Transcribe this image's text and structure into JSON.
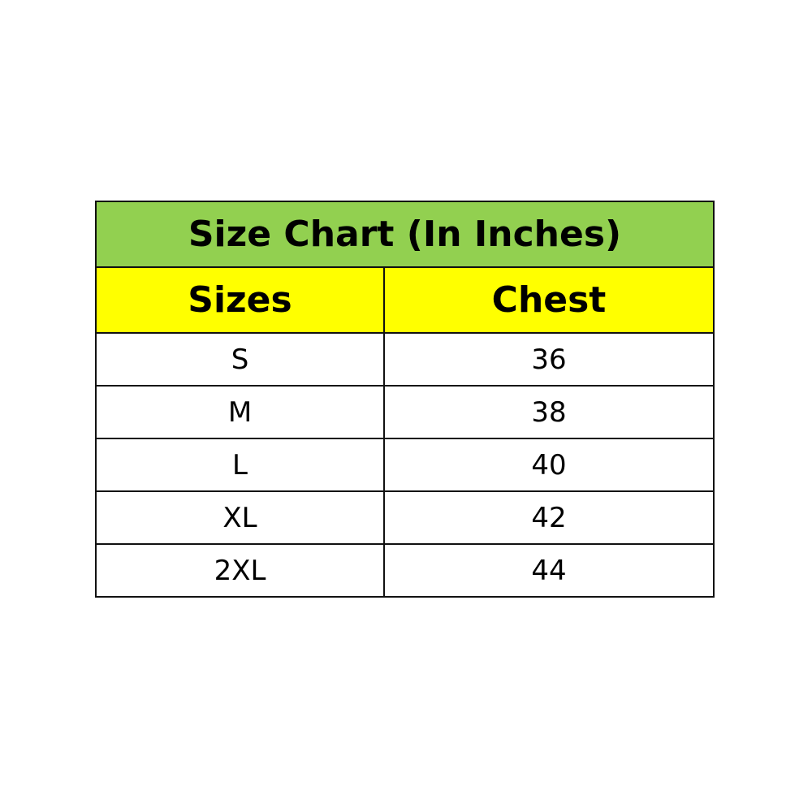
{
  "title": "Size Chart (In Inches)",
  "headers": [
    "Sizes",
    "Chest"
  ],
  "rows": [
    [
      "S",
      "36"
    ],
    [
      "M",
      "38"
    ],
    [
      "L",
      "40"
    ],
    [
      "XL",
      "42"
    ],
    [
      "2XL",
      "44"
    ]
  ],
  "colors": {
    "title_bg": "#92d050",
    "header_bg": "#ffff00",
    "border": "#111111"
  }
}
